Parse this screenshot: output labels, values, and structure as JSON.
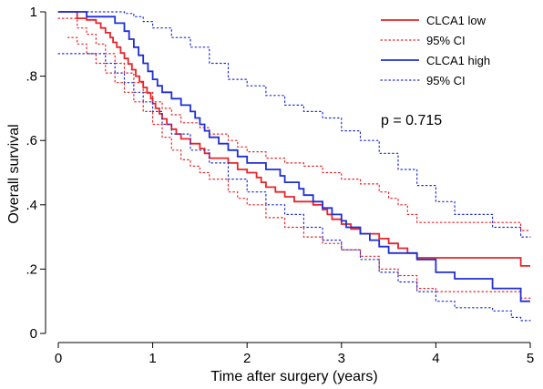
{
  "chart_data": {
    "type": "line",
    "title": "",
    "xlabel": "Time after surgery (years)",
    "ylabel": "Overall survival",
    "xlim": [
      0,
      5
    ],
    "ylim": [
      0,
      1
    ],
    "x_ticks": [
      0,
      1,
      2,
      3,
      4,
      5
    ],
    "x_tick_labels": [
      "0",
      "1",
      "2",
      "3",
      "4",
      "5"
    ],
    "y_ticks": [
      0,
      0.2,
      0.4,
      0.6,
      0.8,
      1
    ],
    "y_tick_labels": [
      "0",
      ".2",
      ".4",
      ".6",
      ".8",
      "1"
    ],
    "grid": false,
    "legend_position": "top-right",
    "annotation": "p = 0.715",
    "colors": {
      "low": "#e8252a",
      "high": "#1f2fd6"
    },
    "series": [
      {
        "name": "CLCA1 low",
        "style": "step-solid",
        "color": "#e8252a",
        "points": [
          [
            0,
            1
          ],
          [
            0.1,
            1
          ],
          [
            0.2,
            0.98
          ],
          [
            0.3,
            0.975
          ],
          [
            0.4,
            0.965
          ],
          [
            0.45,
            0.95
          ],
          [
            0.5,
            0.935
          ],
          [
            0.55,
            0.92
          ],
          [
            0.58,
            0.905
          ],
          [
            0.62,
            0.89
          ],
          [
            0.66,
            0.872
          ],
          [
            0.7,
            0.855
          ],
          [
            0.74,
            0.838
          ],
          [
            0.78,
            0.82
          ],
          [
            0.82,
            0.8
          ],
          [
            0.86,
            0.783
          ],
          [
            0.9,
            0.765
          ],
          [
            0.94,
            0.748
          ],
          [
            0.98,
            0.73
          ],
          [
            1.0,
            0.715
          ],
          [
            1.03,
            0.7
          ],
          [
            1.07,
            0.683
          ],
          [
            1.1,
            0.667
          ],
          [
            1.15,
            0.65
          ],
          [
            1.2,
            0.635
          ],
          [
            1.25,
            0.62
          ],
          [
            1.3,
            0.605
          ],
          [
            1.4,
            0.59
          ],
          [
            1.5,
            0.575
          ],
          [
            1.55,
            0.56
          ],
          [
            1.6,
            0.545
          ],
          [
            1.8,
            0.53
          ],
          [
            1.9,
            0.51
          ],
          [
            2.0,
            0.5
          ],
          [
            2.1,
            0.485
          ],
          [
            2.15,
            0.47
          ],
          [
            2.2,
            0.455
          ],
          [
            2.3,
            0.44
          ],
          [
            2.4,
            0.425
          ],
          [
            2.5,
            0.41
          ],
          [
            2.7,
            0.4
          ],
          [
            2.8,
            0.385
          ],
          [
            2.85,
            0.37
          ],
          [
            2.9,
            0.355
          ],
          [
            3.0,
            0.34
          ],
          [
            3.1,
            0.325
          ],
          [
            3.2,
            0.31
          ],
          [
            3.4,
            0.295
          ],
          [
            3.5,
            0.28
          ],
          [
            3.6,
            0.265
          ],
          [
            3.7,
            0.25
          ],
          [
            3.8,
            0.235
          ],
          [
            4.0,
            0.235
          ],
          [
            4.9,
            0.235
          ],
          [
            4.9,
            0.21
          ],
          [
            5.0,
            0.21
          ]
        ]
      },
      {
        "name": "95% CI",
        "style": "step-dotted",
        "color": "#e8252a",
        "points": [
          [
            0,
            0.98
          ],
          [
            0.1,
            0.98
          ],
          [
            0.2,
            0.95
          ],
          [
            0.3,
            0.93
          ],
          [
            0.4,
            0.9
          ],
          [
            0.5,
            0.87
          ],
          [
            0.6,
            0.84
          ],
          [
            0.7,
            0.81
          ],
          [
            0.8,
            0.78
          ],
          [
            0.9,
            0.75
          ],
          [
            1.0,
            0.72
          ],
          [
            1.1,
            0.7
          ],
          [
            1.2,
            0.68
          ],
          [
            1.3,
            0.655
          ],
          [
            1.5,
            0.64
          ],
          [
            1.6,
            0.62
          ],
          [
            1.8,
            0.6
          ],
          [
            1.9,
            0.58
          ],
          [
            2.0,
            0.565
          ],
          [
            2.2,
            0.545
          ],
          [
            2.4,
            0.53
          ],
          [
            2.6,
            0.52
          ],
          [
            2.8,
            0.5
          ],
          [
            3.0,
            0.48
          ],
          [
            3.2,
            0.465
          ],
          [
            3.4,
            0.44
          ],
          [
            3.5,
            0.42
          ],
          [
            3.6,
            0.4
          ],
          [
            3.7,
            0.37
          ],
          [
            3.8,
            0.345
          ],
          [
            4.0,
            0.345
          ],
          [
            4.9,
            0.345
          ],
          [
            4.9,
            0.32
          ],
          [
            5.0,
            0.32
          ]
        ]
      },
      {
        "name": "95% CI",
        "style": "step-dotted",
        "color": "#e8252a",
        "points": [
          [
            0.1,
            0.92
          ],
          [
            0.2,
            0.9
          ],
          [
            0.3,
            0.87
          ],
          [
            0.4,
            0.84
          ],
          [
            0.5,
            0.81
          ],
          [
            0.6,
            0.78
          ],
          [
            0.7,
            0.75
          ],
          [
            0.8,
            0.72
          ],
          [
            0.9,
            0.69
          ],
          [
            1.0,
            0.65
          ],
          [
            1.1,
            0.61
          ],
          [
            1.2,
            0.57
          ],
          [
            1.3,
            0.54
          ],
          [
            1.4,
            0.52
          ],
          [
            1.5,
            0.5
          ],
          [
            1.6,
            0.48
          ],
          [
            1.8,
            0.44
          ],
          [
            1.9,
            0.42
          ],
          [
            2.0,
            0.4
          ],
          [
            2.2,
            0.36
          ],
          [
            2.4,
            0.33
          ],
          [
            2.6,
            0.3
          ],
          [
            2.8,
            0.28
          ],
          [
            3.0,
            0.26
          ],
          [
            3.2,
            0.24
          ],
          [
            3.4,
            0.2
          ],
          [
            3.6,
            0.18
          ],
          [
            3.8,
            0.14
          ],
          [
            4.0,
            0.13
          ],
          [
            4.9,
            0.13
          ],
          [
            4.9,
            0.11
          ],
          [
            5.0,
            0.11
          ]
        ]
      },
      {
        "name": "CLCA1 high",
        "style": "step-solid",
        "color": "#1f2fd6",
        "points": [
          [
            0,
            1
          ],
          [
            0.3,
            1
          ],
          [
            0.3,
            0.985
          ],
          [
            0.6,
            0.985
          ],
          [
            0.6,
            0.965
          ],
          [
            0.7,
            0.965
          ],
          [
            0.7,
            0.94
          ],
          [
            0.75,
            0.915
          ],
          [
            0.8,
            0.89
          ],
          [
            0.85,
            0.865
          ],
          [
            0.9,
            0.84
          ],
          [
            0.95,
            0.815
          ],
          [
            1.0,
            0.79
          ],
          [
            1.05,
            0.77
          ],
          [
            1.1,
            0.75
          ],
          [
            1.2,
            0.73
          ],
          [
            1.3,
            0.71
          ],
          [
            1.4,
            0.69
          ],
          [
            1.45,
            0.67
          ],
          [
            1.5,
            0.65
          ],
          [
            1.55,
            0.63
          ],
          [
            1.6,
            0.61
          ],
          [
            1.7,
            0.59
          ],
          [
            1.8,
            0.57
          ],
          [
            1.9,
            0.55
          ],
          [
            2.0,
            0.53
          ],
          [
            2.2,
            0.51
          ],
          [
            2.35,
            0.49
          ],
          [
            2.4,
            0.47
          ],
          [
            2.55,
            0.45
          ],
          [
            2.6,
            0.43
          ],
          [
            2.7,
            0.41
          ],
          [
            2.8,
            0.39
          ],
          [
            2.9,
            0.37
          ],
          [
            3.0,
            0.35
          ],
          [
            3.05,
            0.33
          ],
          [
            3.2,
            0.31
          ],
          [
            3.3,
            0.29
          ],
          [
            3.4,
            0.27
          ],
          [
            3.5,
            0.25
          ],
          [
            3.8,
            0.25
          ],
          [
            3.8,
            0.23
          ],
          [
            4.0,
            0.21
          ],
          [
            4.0,
            0.19
          ],
          [
            4.2,
            0.17
          ],
          [
            4.6,
            0.17
          ],
          [
            4.6,
            0.14
          ],
          [
            4.9,
            0.14
          ],
          [
            4.9,
            0.1
          ],
          [
            5.0,
            0.1
          ]
        ]
      },
      {
        "name": "95% CI",
        "style": "step-dotted",
        "color": "#1f2fd6",
        "points": [
          [
            0,
            1
          ],
          [
            0.3,
            1
          ],
          [
            0.6,
            1
          ],
          [
            0.7,
            0.995
          ],
          [
            0.8,
            0.985
          ],
          [
            0.9,
            0.97
          ],
          [
            1.0,
            0.95
          ],
          [
            1.2,
            0.92
          ],
          [
            1.4,
            0.89
          ],
          [
            1.6,
            0.84
          ],
          [
            1.8,
            0.79
          ],
          [
            2.0,
            0.77
          ],
          [
            2.2,
            0.74
          ],
          [
            2.4,
            0.71
          ],
          [
            2.6,
            0.69
          ],
          [
            2.8,
            0.67
          ],
          [
            3.0,
            0.63
          ],
          [
            3.2,
            0.6
          ],
          [
            3.4,
            0.56
          ],
          [
            3.6,
            0.51
          ],
          [
            3.8,
            0.46
          ],
          [
            4.0,
            0.41
          ],
          [
            4.2,
            0.37
          ],
          [
            4.6,
            0.33
          ],
          [
            4.8,
            0.33
          ],
          [
            4.9,
            0.3
          ],
          [
            5.0,
            0.3
          ]
        ]
      },
      {
        "name": "95% CI",
        "style": "step-dotted",
        "color": "#1f2fd6",
        "points": [
          [
            0,
            0.87
          ],
          [
            0.4,
            0.87
          ],
          [
            0.5,
            0.84
          ],
          [
            0.6,
            0.81
          ],
          [
            0.7,
            0.78
          ],
          [
            0.8,
            0.75
          ],
          [
            0.9,
            0.72
          ],
          [
            1.0,
            0.69
          ],
          [
            1.1,
            0.65
          ],
          [
            1.2,
            0.62
          ],
          [
            1.4,
            0.57
          ],
          [
            1.6,
            0.53
          ],
          [
            1.8,
            0.48
          ],
          [
            2.0,
            0.44
          ],
          [
            2.2,
            0.4
          ],
          [
            2.4,
            0.37
          ],
          [
            2.6,
            0.33
          ],
          [
            2.8,
            0.29
          ],
          [
            3.0,
            0.26
          ],
          [
            3.2,
            0.23
          ],
          [
            3.4,
            0.19
          ],
          [
            3.6,
            0.16
          ],
          [
            3.8,
            0.13
          ],
          [
            4.0,
            0.1
          ],
          [
            4.2,
            0.08
          ],
          [
            4.6,
            0.07
          ],
          [
            4.8,
            0.05
          ],
          [
            4.9,
            0.04
          ],
          [
            5.0,
            0.04
          ]
        ]
      }
    ],
    "legend": [
      {
        "label": "CLCA1 low",
        "color": "#e8252a",
        "style": "solid"
      },
      {
        "label": "95% CI",
        "color": "#e8252a",
        "style": "dotted"
      },
      {
        "label": "CLCA1 high",
        "color": "#1f2fd6",
        "style": "solid"
      },
      {
        "label": "95% CI",
        "color": "#1f2fd6",
        "style": "dotted"
      }
    ]
  }
}
